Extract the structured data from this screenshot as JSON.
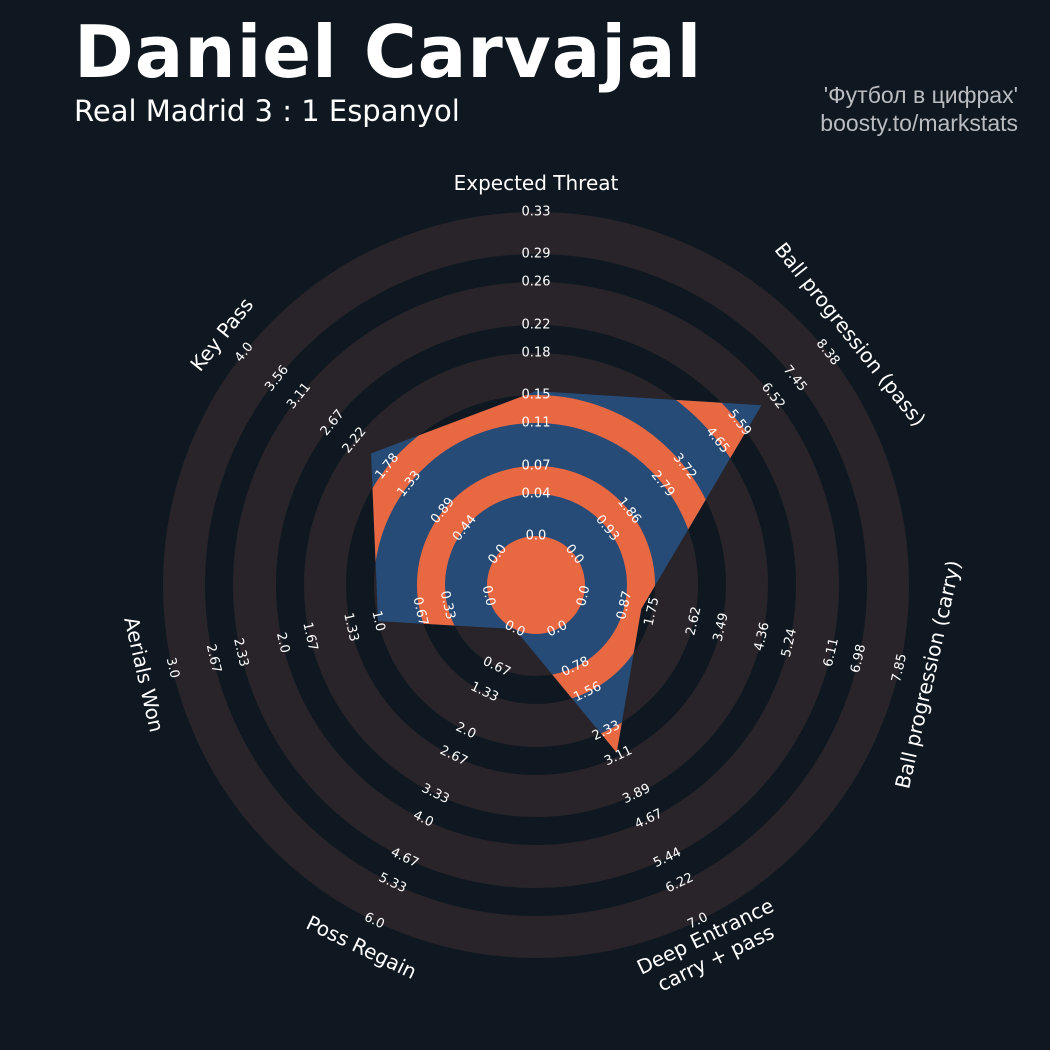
{
  "header": {
    "title": "Daniel Carvajal",
    "subtitle": "Real Madrid 3 : 1 Espanyol",
    "credit_line1": "'Футбол в цифрах'",
    "credit_line2": "boosty.to/markstats"
  },
  "colors": {
    "background": "#0f1820",
    "ring": "#28242a",
    "polygon": "#274b77",
    "polygon_rings": "#e86842",
    "text": "#ffffff",
    "credit": "#b9bcc0"
  },
  "chart_data": {
    "type": "radar",
    "params": [
      {
        "label": [
          "Expected Threat"
        ],
        "min": 0.0,
        "max": 0.33,
        "value": 0.15,
        "ticks": [
          "0.0",
          "0.04",
          "0.07",
          "0.11",
          "0.15",
          "0.18",
          "0.22",
          "0.26",
          "0.29",
          "0.33"
        ]
      },
      {
        "label": [
          "Ball progression (pass)"
        ],
        "min": 0.0,
        "max": 8.38,
        "value": 6.2,
        "ticks": [
          "0.0",
          "0.93",
          "1.86",
          "2.79",
          "3.72",
          "4.65",
          "5.59",
          "6.52",
          "7.45",
          "8.38"
        ]
      },
      {
        "label": [
          "Ball progression (carry)"
        ],
        "min": 0.0,
        "max": 7.85,
        "value": 1.4,
        "ticks": [
          "0.0",
          "0.87",
          "1.75",
          "2.62",
          "3.49",
          "4.36",
          "5.24",
          "6.11",
          "6.98",
          "7.85"
        ]
      },
      {
        "label": [
          "Deep Entrance",
          "carry + pass"
        ],
        "min": 0.0,
        "max": 7.0,
        "value": 3.0,
        "ticks": [
          "0.0",
          "0.78",
          "1.56",
          "2.33",
          "3.11",
          "3.89",
          "4.67",
          "5.44",
          "6.22",
          "7.0"
        ]
      },
      {
        "label": [
          "Poss Regain"
        ],
        "min": 0.0,
        "max": 6.0,
        "value": 0.0,
        "ticks": [
          "0.0",
          "0.67",
          "1.33",
          "2.0",
          "2.67",
          "3.33",
          "4.0",
          "4.67",
          "5.33",
          "6.0"
        ]
      },
      {
        "label": [
          "Aerials Won"
        ],
        "min": 0.0,
        "max": 3.0,
        "value": 1.0,
        "ticks": [
          "0.0",
          "0.33",
          "0.67",
          "1.0",
          "1.33",
          "1.67",
          "2.0",
          "2.33",
          "2.67",
          "3.0"
        ]
      },
      {
        "label": [
          "Key Pass"
        ],
        "min": 0.0,
        "max": 4.0,
        "value": 2.0,
        "ticks": [
          "0.0",
          "0.44",
          "0.89",
          "1.33",
          "1.78",
          "2.22",
          "2.67",
          "3.11",
          "3.56",
          "4.0"
        ]
      }
    ]
  }
}
